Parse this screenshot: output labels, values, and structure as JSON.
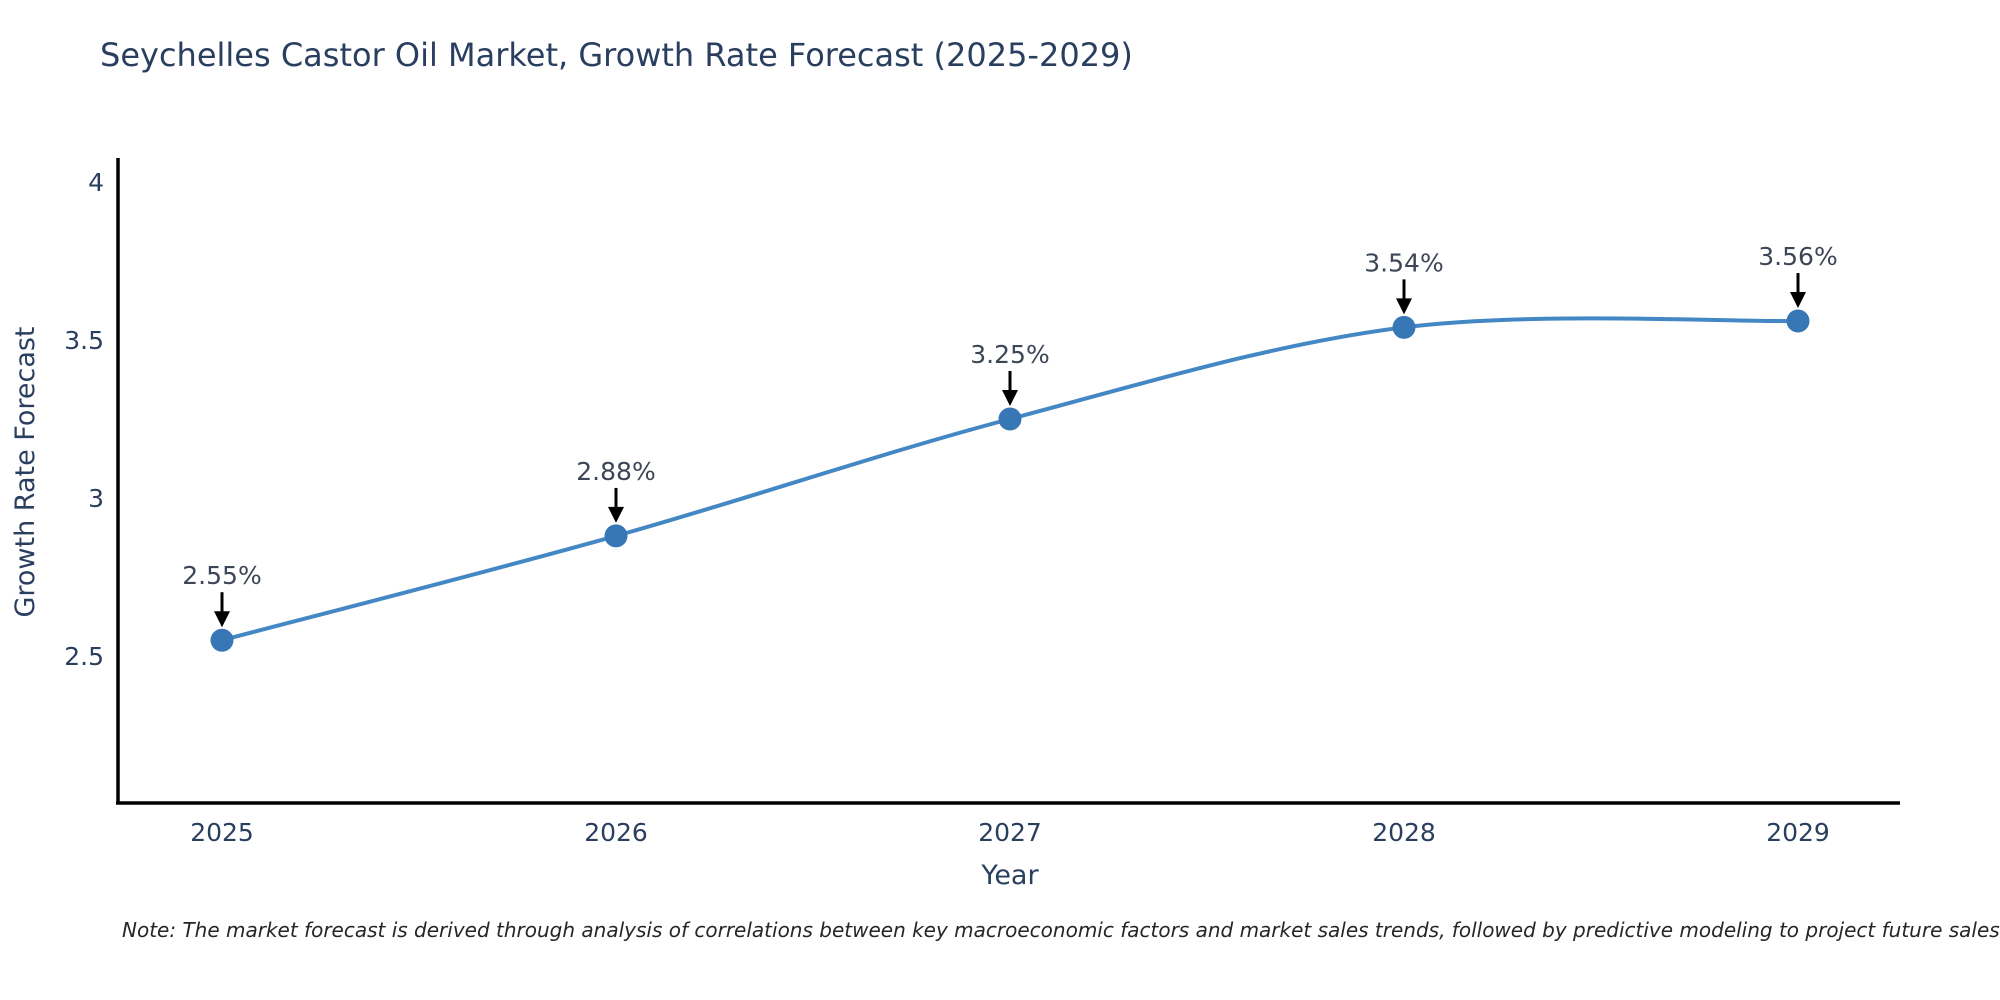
{
  "title": "Seychelles Castor Oil Market, Growth Rate Forecast (2025-2029)",
  "note": "Note: The market forecast is derived through analysis of correlations between key macroeconomic factors and market sales trends, followed by predictive modeling to project future sales",
  "chart_data": {
    "type": "line",
    "title": "Seychelles Castor Oil Market, Growth Rate Forecast (2025-2029)",
    "x": [
      2025,
      2026,
      2027,
      2028,
      2029
    ],
    "categories": [
      "2025",
      "2026",
      "2027",
      "2028",
      "2029"
    ],
    "series": [
      {
        "name": "Growth Rate Forecast",
        "values": [
          2.55,
          2.88,
          3.25,
          3.54,
          3.56
        ]
      }
    ],
    "point_labels": [
      "2.55%",
      "2.88%",
      "3.25%",
      "3.54%",
      "3.56%"
    ],
    "xlabel": "Year",
    "ylabel": "Growth Rate Forecast",
    "yticks": [
      2.5,
      3,
      3.5,
      4
    ],
    "ylim": [
      2.04,
      4.07
    ],
    "line_shape": "spline",
    "grid": false,
    "legend": "none",
    "annotations_have_arrows": true,
    "colors": {
      "line": "#4487c5",
      "marker": "#3777b6",
      "title": "#2a3f5f",
      "tick": "#2a3f5f",
      "axis_line": "#000000",
      "annotation_text": "#3d4656",
      "arrow": "#000000",
      "background": "#ffffff"
    }
  }
}
